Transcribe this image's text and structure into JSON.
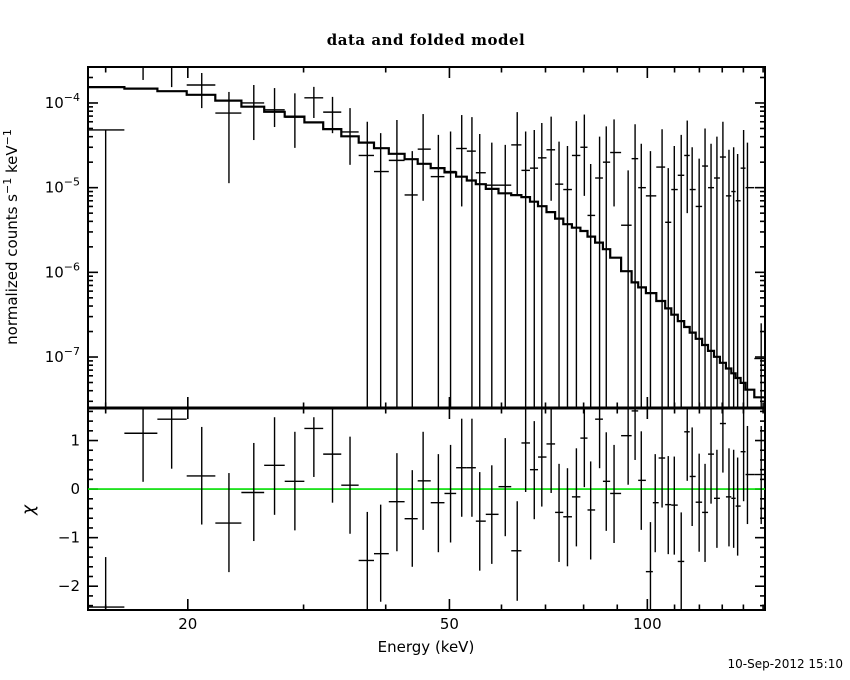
{
  "page": {
    "timestamp": "10-Sep-2012 15:10",
    "background": "#ffffff"
  },
  "colors": {
    "frame": "#000000",
    "data": "#000000",
    "model": "#000000",
    "zero_line": "#00dd00"
  },
  "chart_data": [
    {
      "panel": "top",
      "type": "line",
      "title": "data and folded model",
      "ylabel": "normalized counts s-1 keV-1",
      "ylabel_parts": [
        "normalized counts s",
        "−1",
        " keV",
        "−1"
      ],
      "xscale": "log",
      "yscale": "log",
      "xlim": [
        14.1,
        151
      ],
      "ylim": [
        2.5e-08,
        0.000266
      ],
      "x_major_ticks": [
        20,
        50,
        100
      ],
      "x_minor_ticks": [
        15,
        30,
        40,
        60,
        70,
        80,
        90,
        110,
        120,
        130,
        140,
        150
      ],
      "y_major_exponents": [
        -4,
        -5,
        -6,
        -7
      ],
      "grid": false,
      "legend": "none",
      "model_step_anchors": {
        "E": [
          14,
          16,
          18,
          20,
          22,
          24,
          26,
          28,
          30,
          33,
          36,
          40,
          45,
          50,
          55,
          60,
          65,
          70,
          75,
          80,
          85,
          90,
          96,
          103,
          110,
          120,
          130,
          140,
          146,
          151
        ],
        "value": [
          0.000155,
          0.000153,
          0.000143,
          0.000132,
          0.000118,
          9.8e-05,
          8.5e-05,
          7.4e-05,
          6.5e-05,
          5e-05,
          3.8e-05,
          2.8e-05,
          2e-05,
          1.53e-05,
          1.15e-05,
          8.7e-06,
          7.9e-06,
          5.75e-06,
          3.8e-06,
          3.1e-06,
          2.16e-06,
          1.43e-06,
          7.4e-07,
          5.25e-07,
          3.16e-07,
          1.62e-07,
          8.7e-08,
          4.9e-08,
          3.55e-08,
          3.1e-08
        ]
      },
      "points_format": [
        "E_keV",
        "value",
        "err_hi_value",
        "err_lo_value_null_means_below_scale"
      ],
      "points": [
        [
          15.0,
          4.8e-05,
          4.8e-05,
          null
        ],
        [
          17.1,
          0.000266,
          0.00032,
          0.000187
        ],
        [
          18.9,
          0.000266,
          0.00032,
          0.000154
        ],
        [
          21.0,
          0.000163,
          0.000226,
          8.7e-05
        ],
        [
          23.1,
          7.6e-05,
          0.000135,
          1.13e-05
        ],
        [
          25.2,
          0.0001,
          0.000163,
          3.65e-05
        ],
        [
          27.1,
          8.3e-05,
          0.00015,
          5.2e-05
        ],
        [
          29.1,
          6.8e-05,
          0.00013,
          2.95e-05
        ],
        [
          31.1,
          0.000115,
          0.000155,
          6.65e-05
        ],
        [
          33.2,
          7.8e-05,
          0.000118,
          4.4e-05
        ],
        [
          35.3,
          4.55e-05,
          8.7e-05,
          1.86e-05
        ],
        [
          37.5,
          2.4e-05,
          6e-05,
          null
        ],
        [
          39.3,
          1.55e-05,
          4.4e-05,
          null
        ],
        [
          41.6,
          2.1e-05,
          6.3e-05,
          null
        ],
        [
          43.9,
          8.2e-06,
          2.7e-05,
          null
        ],
        [
          45.6,
          2.85e-05,
          7.4e-05,
          7e-06
        ],
        [
          48.1,
          1.35e-05,
          4.2e-05,
          null
        ],
        [
          50.2,
          1.55e-05,
          4.6e-05,
          null
        ],
        [
          52.2,
          2.9e-05,
          7.2e-05,
          6e-06
        ],
        [
          54.1,
          2.7e-05,
          6.8e-05,
          null
        ],
        [
          55.6,
          1.5e-05,
          4.3e-05,
          null
        ],
        [
          58.0,
          1.07e-05,
          3.4e-05,
          null
        ],
        [
          60.8,
          1.07e-05,
          3.2e-05,
          null
        ],
        [
          63.4,
          3.2e-05,
          7.8e-05,
          8e-06
        ],
        [
          65.3,
          1.6e-05,
          4.6e-05,
          null
        ],
        [
          67.3,
          1.7e-05,
          4.8e-05,
          null
        ],
        [
          69.1,
          2.25e-05,
          5.8e-05,
          null
        ],
        [
          71.4,
          2.8e-05,
          6.9e-05,
          7e-06
        ],
        [
          73.4,
          1.1e-05,
          3.5e-05,
          null
        ],
        [
          75.6,
          9.5e-06,
          3.1e-05,
          null
        ],
        [
          78.0,
          2.4e-05,
          6.1e-05,
          null
        ],
        [
          80.2,
          3e-05,
          7.3e-05,
          8e-06
        ],
        [
          82.0,
          4.7e-06,
          1.9e-05,
          null
        ],
        [
          84.6,
          1.3e-05,
          4e-05,
          null
        ],
        [
          86.6,
          2e-05,
          5.3e-05,
          null
        ],
        [
          89.0,
          2.6e-05,
          6.4e-05,
          6e-06
        ],
        [
          93.5,
          3.6e-06,
          1.6e-05,
          null
        ],
        [
          95.8,
          2.2e-05,
          5.6e-05,
          null
        ],
        [
          97.9,
          1e-05,
          3.3e-05,
          null
        ],
        [
          101.1,
          8e-06,
          2.7e-05,
          null
        ],
        [
          105.3,
          1.75e-05,
          4.9e-05,
          null
        ],
        [
          107.6,
          3.9e-06,
          1.7e-05,
          null
        ],
        [
          109.9,
          9.5e-06,
          3.1e-05,
          null
        ],
        [
          112.6,
          1.4e-05,
          4.2e-05,
          null
        ],
        [
          115.0,
          2.4e-05,
          6.2e-05,
          5e-06
        ],
        [
          117.0,
          9.5e-06,
          3e-05,
          null
        ],
        [
          119.9,
          6e-06,
          2.2e-05,
          null
        ],
        [
          122.4,
          1.8e-05,
          5e-05,
          null
        ],
        [
          125.0,
          1e-05,
          3.3e-05,
          null
        ],
        [
          127.6,
          1.3e-05,
          4e-05,
          null
        ],
        [
          130.3,
          2.3e-05,
          6e-05,
          null
        ],
        [
          133.1,
          8e-06,
          2.8e-05,
          null
        ],
        [
          135.3,
          9e-06,
          3e-05,
          null
        ],
        [
          137.2,
          7e-06,
          2.5e-05,
          null
        ],
        [
          140.1,
          1.7e-05,
          4.8e-05,
          null
        ],
        [
          142.0,
          1e-05,
          3.4e-05,
          null
        ],
        [
          149.0,
          9.6e-08,
          2.5e-07,
          null
        ]
      ]
    },
    {
      "panel": "bottom",
      "type": "scatter",
      "ylabel": "χ",
      "xlabel": "Energy (keV)",
      "xscale": "log",
      "xlim": [
        14.1,
        151
      ],
      "ylim": [
        -2.49,
        1.67
      ],
      "x_major_ticks": [
        20,
        50,
        100
      ],
      "y_major_ticks": [
        1,
        0,
        -1,
        -2
      ],
      "y_minor_step": 0.2,
      "zero_line_y": 0,
      "grid": false,
      "points_format": [
        "E_keV",
        "chi",
        "err_hi_null_means_above_scale",
        "err_lo_null_means_below_scale"
      ],
      "points": [
        [
          15.0,
          -2.43,
          -1.4,
          null
        ],
        [
          17.1,
          1.15,
          1.65,
          0.15
        ],
        [
          18.9,
          1.44,
          null,
          0.42
        ],
        [
          21.0,
          0.27,
          1.28,
          -0.73
        ],
        [
          23.1,
          -0.7,
          0.33,
          -1.71
        ],
        [
          25.2,
          -0.07,
          0.95,
          -1.07
        ],
        [
          27.1,
          0.49,
          1.48,
          -0.53
        ],
        [
          29.1,
          0.16,
          1.18,
          -0.85
        ],
        [
          31.1,
          1.25,
          1.48,
          0.25
        ],
        [
          33.2,
          0.72,
          null,
          -0.28
        ],
        [
          35.3,
          0.08,
          1.08,
          -0.92
        ],
        [
          37.5,
          -1.47,
          -0.47,
          null
        ],
        [
          39.3,
          -1.33,
          -0.32,
          -2.32
        ],
        [
          41.6,
          -0.26,
          0.74,
          -1.28
        ],
        [
          43.9,
          -0.61,
          0.39,
          -1.6
        ],
        [
          45.6,
          0.17,
          1.18,
          -0.84
        ],
        [
          48.1,
          -0.28,
          0.72,
          -1.3
        ],
        [
          50.2,
          -0.09,
          0.91,
          -1.1
        ],
        [
          52.2,
          0.44,
          1.45,
          -0.57
        ],
        [
          54.1,
          0.44,
          1.45,
          -0.57
        ],
        [
          55.6,
          -0.66,
          0.35,
          -1.68
        ],
        [
          58.0,
          -0.52,
          0.49,
          -1.54
        ],
        [
          60.8,
          0.05,
          1.05,
          -0.97
        ],
        [
          63.4,
          -1.27,
          -0.25,
          -2.3
        ],
        [
          65.3,
          0.95,
          null,
          -0.06
        ],
        [
          67.3,
          0.4,
          1.4,
          -0.62
        ],
        [
          69.1,
          0.66,
          1.66,
          -0.36
        ],
        [
          71.4,
          0.93,
          null,
          -0.08
        ],
        [
          73.4,
          -0.48,
          0.52,
          -1.5
        ],
        [
          75.6,
          -0.57,
          0.43,
          -1.59
        ],
        [
          78.0,
          -0.16,
          0.84,
          -1.18
        ],
        [
          80.2,
          1.05,
          null,
          0.04
        ],
        [
          82.0,
          -0.43,
          0.57,
          -1.45
        ],
        [
          84.6,
          1.44,
          null,
          0.43
        ],
        [
          86.6,
          0.16,
          1.17,
          -0.86
        ],
        [
          89.0,
          -0.09,
          0.91,
          -1.11
        ],
        [
          93.5,
          1.1,
          null,
          0.09
        ],
        [
          95.8,
          1.61,
          null,
          0.6
        ],
        [
          97.9,
          0.18,
          1.19,
          -0.84
        ],
        [
          101.1,
          -1.7,
          -0.68,
          null
        ],
        [
          102.8,
          -0.28,
          0.72,
          -1.3
        ],
        [
          105.3,
          0.64,
          1.64,
          -0.38
        ],
        [
          107.6,
          -0.32,
          0.68,
          -1.34
        ],
        [
          109.9,
          -0.33,
          0.67,
          -1.35
        ],
        [
          112.6,
          -1.49,
          -0.48,
          null
        ],
        [
          115.0,
          1.18,
          null,
          0.17
        ],
        [
          117.0,
          0.26,
          1.27,
          -0.76
        ],
        [
          119.9,
          -0.27,
          0.73,
          -1.29
        ],
        [
          122.4,
          -0.48,
          0.52,
          -1.5
        ],
        [
          125.0,
          0.72,
          null,
          -0.3
        ],
        [
          127.6,
          -0.19,
          0.81,
          -1.21
        ],
        [
          130.3,
          1.35,
          null,
          0.34
        ],
        [
          133.1,
          -0.16,
          0.84,
          -1.18
        ],
        [
          135.3,
          -0.19,
          0.81,
          -1.21
        ],
        [
          137.2,
          -0.35,
          0.65,
          -1.37
        ],
        [
          140.1,
          0.77,
          null,
          -0.25
        ],
        [
          142.0,
          0.3,
          1.3,
          -0.72
        ],
        [
          149.0,
          0.3,
          1.3,
          -0.72
        ]
      ]
    }
  ]
}
